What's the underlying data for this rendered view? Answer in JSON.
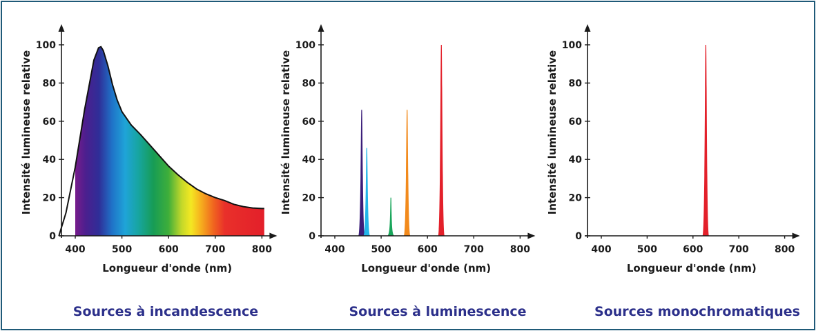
{
  "colors": {
    "frame": "#1f5a78",
    "caption": "#2b2f8a",
    "axis": "#1a1a1a"
  },
  "chart_data": [
    {
      "type": "area",
      "subtitle": "Sources à incandescence",
      "xlabel": "Longueur d'onde (nm)",
      "ylabel": "Intensité lumineuse relative",
      "xticks": [
        400,
        500,
        600,
        700,
        800
      ],
      "yticks": [
        0,
        20,
        40,
        60,
        80,
        100
      ],
      "xlim": [
        360,
        810
      ],
      "ylim": [
        0,
        110
      ],
      "grid": false,
      "x": [
        365,
        380,
        400,
        420,
        440,
        450,
        455,
        460,
        470,
        480,
        490,
        500,
        520,
        540,
        560,
        580,
        600,
        620,
        640,
        660,
        680,
        700,
        720,
        740,
        760,
        780,
        800,
        805
      ],
      "y": [
        0,
        12,
        36,
        66,
        92,
        98.5,
        99,
        97,
        89,
        79,
        71,
        65,
        58,
        53,
        47.5,
        42,
        36.5,
        32,
        28,
        24.5,
        22,
        20,
        18.5,
        16.5,
        15.3,
        14.6,
        14.3,
        14.3
      ],
      "spectrum_fill_range": [
        400,
        805
      ]
    },
    {
      "type": "area",
      "subtitle": "Sources à luminescence",
      "xlabel": "Longueur d'onde (nm)",
      "ylabel": "Intensité lumineuse relative",
      "xticks": [
        400,
        500,
        600,
        700,
        800
      ],
      "yticks": [
        0,
        20,
        40,
        60,
        80,
        100
      ],
      "xlim": [
        360,
        810
      ],
      "ylim": [
        0,
        110
      ],
      "grid": false,
      "peaks": [
        {
          "center": 458,
          "height": 66,
          "color": "#3b1e7a"
        },
        {
          "center": 469,
          "height": 46,
          "color": "#22b5e8"
        },
        {
          "center": 521,
          "height": 20,
          "color": "#18a55a"
        },
        {
          "center": 556,
          "height": 66,
          "color": "#f28a1c"
        },
        {
          "center": 630,
          "height": 100,
          "color": "#e3202a"
        }
      ]
    },
    {
      "type": "area",
      "subtitle": "Sources monochromatiques",
      "xlabel": "Longueur d'onde (nm)",
      "ylabel": "Intensité lumineuse relative",
      "xticks": [
        400,
        500,
        600,
        700,
        800
      ],
      "yticks": [
        0,
        20,
        40,
        60,
        80,
        100
      ],
      "xlim": [
        360,
        810
      ],
      "ylim": [
        0,
        110
      ],
      "grid": false,
      "peaks": [
        {
          "center": 628,
          "height": 100,
          "color": "#e3202a"
        }
      ]
    }
  ]
}
